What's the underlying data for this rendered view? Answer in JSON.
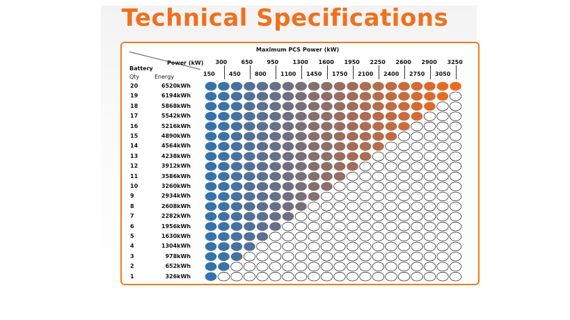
{
  "title": "Technical Specifications",
  "table": {
    "header": "Maximum PCS Power (kW)",
    "power_label": "Power (kW)",
    "battery_label": "Battery",
    "qty_label": "Qty",
    "energy_label": "Energy",
    "power_top": [
      "300",
      "650",
      "950",
      "1300",
      "1600",
      "1950",
      "2250",
      "2600",
      "2900",
      "3250"
    ],
    "power_bottom": [
      "150",
      "450",
      "800",
      "1100",
      "1450",
      "1750",
      "2100",
      "2400",
      "2750",
      "3050"
    ],
    "rows": [
      {
        "qty": "20",
        "energy": "6520kWh",
        "filled": 20
      },
      {
        "qty": "19",
        "energy": "6194kWh",
        "filled": 19
      },
      {
        "qty": "18",
        "energy": "5868kWh",
        "filled": 18
      },
      {
        "qty": "17",
        "energy": "5542kWh",
        "filled": 17
      },
      {
        "qty": "16",
        "energy": "5216kWh",
        "filled": 16
      },
      {
        "qty": "15",
        "energy": "4890kWh",
        "filled": 15
      },
      {
        "qty": "14",
        "energy": "4564kWh",
        "filled": 14
      },
      {
        "qty": "13",
        "energy": "4238kWh",
        "filled": 13
      },
      {
        "qty": "12",
        "energy": "3912kWh",
        "filled": 12
      },
      {
        "qty": "11",
        "energy": "3586kWh",
        "filled": 11
      },
      {
        "qty": "10",
        "energy": "3260kWh",
        "filled": 10
      },
      {
        "qty": "9",
        "energy": "2934kWh",
        "filled": 9
      },
      {
        "qty": "8",
        "energy": "2608kWh",
        "filled": 8
      },
      {
        "qty": "7",
        "energy": "2282kWh",
        "filled": 7
      },
      {
        "qty": "6",
        "energy": "1956kWh",
        "filled": 6
      },
      {
        "qty": "5",
        "energy": "1630kWh",
        "filled": 5
      },
      {
        "qty": "4",
        "energy": "1304kWh",
        "filled": 4
      },
      {
        "qty": "3",
        "energy": "978kWh",
        "filled": 3
      },
      {
        "qty": "2",
        "energy": "652kWh",
        "filled": 2
      },
      {
        "qty": "1",
        "energy": "326kWh",
        "filled": 1
      }
    ],
    "columns": 20,
    "colors": {
      "start": "#3572ad",
      "end": "#f06a1e",
      "empty_stroke": "#333333",
      "frame": "#ee7a1c",
      "title": "#f0701e"
    }
  }
}
